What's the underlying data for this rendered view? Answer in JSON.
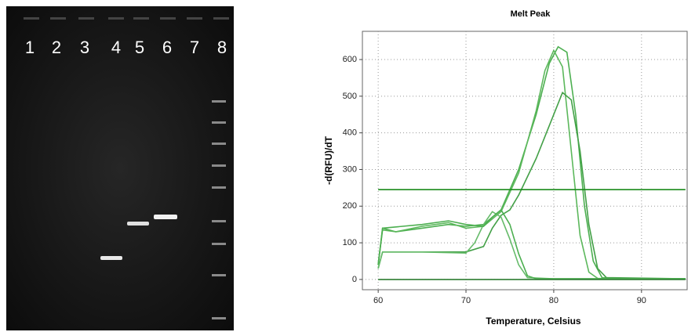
{
  "gel": {
    "lane_labels": [
      "1",
      "2",
      "3",
      "4",
      "5",
      "6",
      "7",
      "8"
    ]
  },
  "chart_data": {
    "type": "line",
    "title": "Melt Peak",
    "x_label": "Temperature, Celsius",
    "y_label": "-d(RFU)/dT",
    "xlim": [
      58.2,
      95.2
    ],
    "xticks": [
      60,
      70,
      80,
      90
    ],
    "ylim": [
      -28,
      677
    ],
    "yticks": [
      0,
      100,
      200,
      300,
      400,
      500,
      600
    ],
    "grid": true,
    "series": [
      {
        "color": "#4caf50",
        "x": [
          60,
          60.5,
          62,
          65,
          68,
          70,
          72,
          74,
          76,
          78,
          79.5,
          80.5,
          81.5,
          82.5,
          83.5,
          84.5,
          85.5,
          90,
          95
        ],
        "values": [
          40,
          140,
          130,
          140,
          150,
          145,
          150,
          190,
          300,
          450,
          590,
          635,
          620,
          450,
          200,
          50,
          5,
          2,
          2
        ]
      },
      {
        "color": "#5cb85c",
        "x": [
          60,
          60.5,
          62,
          65,
          68,
          70,
          72,
          74,
          76,
          78,
          79,
          80,
          81,
          82,
          83,
          84,
          85,
          95
        ],
        "values": [
          40,
          135,
          130,
          145,
          155,
          140,
          145,
          185,
          290,
          460,
          570,
          625,
          580,
          350,
          120,
          20,
          3,
          2
        ]
      },
      {
        "color": "#43a047",
        "x": [
          60,
          60.5,
          65,
          70,
          72,
          73,
          74,
          75,
          76,
          78,
          80,
          81,
          82,
          83,
          84,
          85,
          86,
          95
        ],
        "values": [
          30,
          75,
          75,
          75,
          90,
          140,
          175,
          190,
          230,
          330,
          450,
          510,
          490,
          350,
          150,
          30,
          5,
          2
        ]
      },
      {
        "color": "#66bb6a",
        "x": [
          60,
          60.5,
          65,
          70,
          71,
          72,
          73,
          74,
          75,
          76,
          77,
          80,
          95
        ],
        "values": [
          30,
          75,
          75,
          72,
          100,
          150,
          185,
          170,
          110,
          40,
          5,
          2,
          2
        ]
      },
      {
        "color": "#4caf50",
        "x": [
          60,
          60.5,
          65,
          68,
          70,
          72,
          73,
          74,
          75,
          76,
          77,
          78,
          95
        ],
        "values": [
          40,
          140,
          150,
          160,
          150,
          145,
          170,
          190,
          150,
          70,
          10,
          2,
          2
        ]
      },
      {
        "color": "#2e7d32",
        "x": [
          60,
          95
        ],
        "values": [
          0,
          0
        ]
      },
      {
        "color": "#1b8a1b",
        "x": [
          60,
          95
        ],
        "values": [
          245,
          245
        ]
      }
    ]
  }
}
